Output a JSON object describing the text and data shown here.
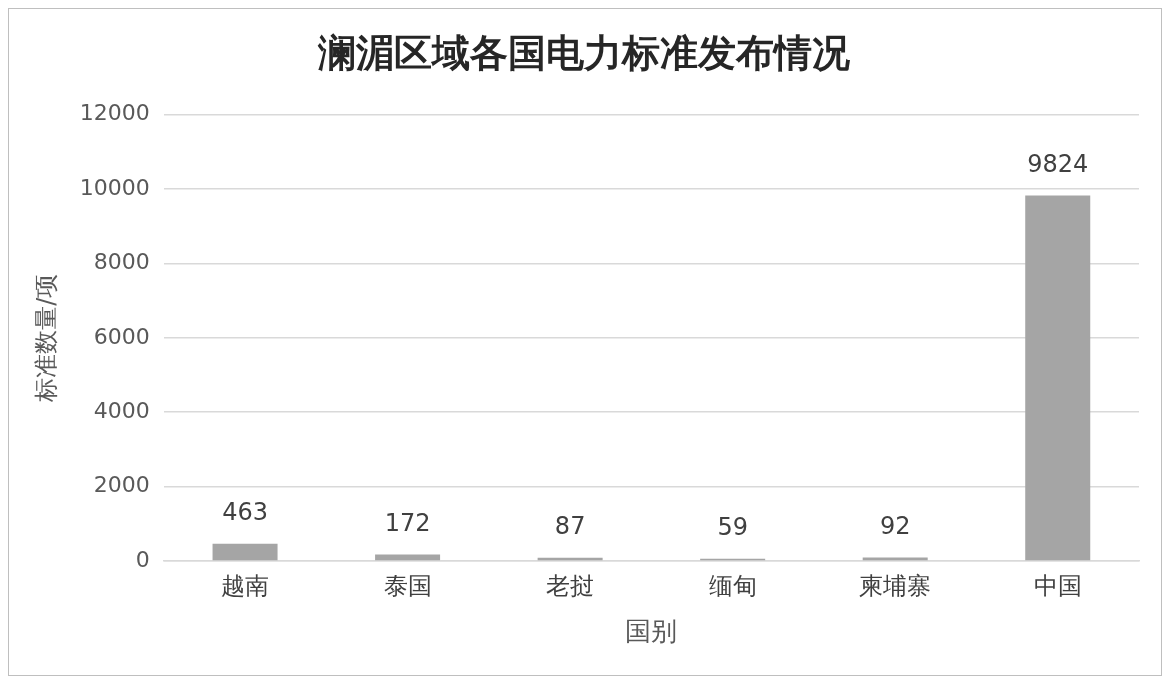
{
  "chart_data": {
    "type": "bar",
    "title": "澜湄区域各国电力标准发布情况",
    "xlabel": "国别",
    "ylabel": "标准数量/项",
    "categories": [
      "越南",
      "泰国",
      "老挝",
      "缅甸",
      "柬埔寨",
      "中国"
    ],
    "values": [
      463,
      172,
      87,
      59,
      92,
      9824
    ],
    "color": "#a5a5a5",
    "ylim": [
      0,
      12000
    ],
    "yticks": [
      0,
      2000,
      4000,
      6000,
      8000,
      10000,
      12000
    ],
    "grid": "y",
    "data_labels": true,
    "legend": false
  }
}
